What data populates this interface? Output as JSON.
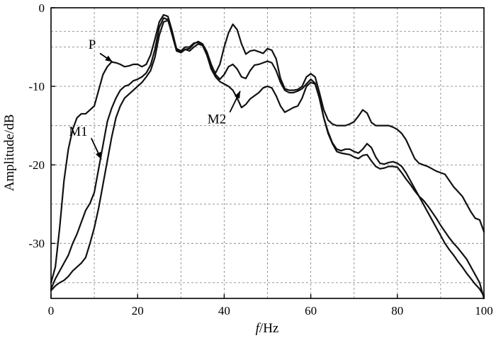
{
  "chart_data": {
    "type": "line",
    "title": "",
    "xlabel_italic": "f",
    "xlabel_rest": "/Hz",
    "ylabel": "Amplitude/dB",
    "xlim": [
      0,
      100
    ],
    "ylim": [
      -37,
      0
    ],
    "xticks": [
      0,
      20,
      40,
      60,
      80,
      100
    ],
    "yticks": [
      0,
      -10,
      -20,
      -30
    ],
    "xtick_labels": [
      "0",
      "20",
      "40",
      "60",
      "80",
      "100"
    ],
    "ytick_labels": [
      "0",
      "-10",
      "-20",
      "-30"
    ],
    "xgrid": [
      0,
      10,
      20,
      30,
      40,
      50,
      60,
      70,
      80,
      90,
      100
    ],
    "ygrid": [
      -3,
      -5,
      -10,
      -15,
      -20,
      -25,
      -30,
      -35
    ],
    "grid": true,
    "series": [
      {
        "name": "P",
        "x": [
          0,
          1,
          2,
          3,
          4,
          5,
          6,
          7,
          8,
          9,
          10,
          11,
          12,
          13,
          14,
          15,
          16,
          17,
          18,
          19,
          20,
          21,
          22,
          23,
          24,
          25,
          26,
          27,
          28,
          29,
          30,
          31,
          32,
          33,
          34,
          35,
          36,
          37,
          38,
          39,
          40,
          41,
          42,
          43,
          44,
          45,
          46,
          47,
          48,
          49,
          50,
          51,
          52,
          53,
          54,
          55,
          56,
          57,
          58,
          59,
          60,
          61,
          62,
          63,
          64,
          65,
          66,
          67,
          68,
          69,
          70,
          71,
          72,
          73,
          74,
          75,
          76,
          77,
          78,
          79,
          80,
          81,
          82,
          83,
          84,
          85,
          86,
          87,
          88,
          89,
          90,
          91,
          92,
          93,
          94,
          95,
          96,
          97,
          98,
          99,
          100
        ],
        "y": [
          -35,
          -33,
          -28,
          -22,
          -18,
          -15.5,
          -14,
          -13.5,
          -13.5,
          -13,
          -12.5,
          -10.5,
          -8.5,
          -7.5,
          -6.9,
          -7,
          -7.2,
          -7.5,
          -7.4,
          -7.2,
          -7.2,
          -7.5,
          -7.2,
          -6,
          -4,
          -1.8,
          -0.9,
          -1.1,
          -3,
          -5.3,
          -5.7,
          -5.3,
          -5.5,
          -5,
          -4.6,
          -4.8,
          -6,
          -7.5,
          -8.3,
          -7.2,
          -5,
          -3.2,
          -2.1,
          -2.8,
          -4.6,
          -5.9,
          -5.5,
          -5.4,
          -5.6,
          -5.8,
          -5.2,
          -5.4,
          -6.5,
          -9,
          -10.3,
          -10.5,
          -10.5,
          -10.4,
          -10,
          -8.8,
          -8.4,
          -8.8,
          -10.8,
          -13,
          -14.3,
          -14.8,
          -15,
          -15,
          -15,
          -14.8,
          -14.5,
          -13.8,
          -13,
          -13.4,
          -14.6,
          -15,
          -15,
          -15,
          -15,
          -15.2,
          -15.5,
          -16,
          -16.8,
          -18,
          -19.2,
          -19.8,
          -20,
          -20.2,
          -20.5,
          -20.8,
          -21,
          -21.2,
          -22,
          -22.8,
          -23.4,
          -24,
          -25,
          -26,
          -26.8,
          -27,
          -28.5
        ]
      },
      {
        "name": "M1",
        "x": [
          0,
          1,
          2,
          3,
          4,
          5,
          6,
          7,
          8,
          9,
          10,
          11,
          12,
          13,
          14,
          15,
          16,
          17,
          18,
          19,
          20,
          21,
          22,
          23,
          24,
          25,
          26,
          27,
          28,
          29,
          30,
          31,
          32,
          33,
          34,
          35,
          36,
          37,
          38,
          39,
          40,
          41,
          42,
          43,
          44,
          45,
          46,
          47,
          48,
          49,
          50,
          51,
          52,
          53,
          54,
          55,
          56,
          57,
          58,
          59,
          60,
          61,
          62,
          63,
          64,
          65,
          66,
          67,
          68,
          69,
          70,
          71,
          72,
          73,
          74,
          75,
          76,
          77,
          78,
          79,
          80,
          81,
          82,
          83,
          84,
          85,
          86,
          87,
          88,
          89,
          90,
          91,
          92,
          93,
          94,
          95,
          96,
          97,
          98,
          99,
          100
        ],
        "y": [
          -35.8,
          -34.5,
          -33.5,
          -32.5,
          -31.5,
          -30,
          -28.8,
          -27.3,
          -25.8,
          -24.9,
          -23.5,
          -20.5,
          -17.5,
          -14.5,
          -12.8,
          -11.5,
          -10.5,
          -10,
          -9.8,
          -9.3,
          -9.1,
          -8.8,
          -8.3,
          -7.3,
          -5.3,
          -2.5,
          -1.3,
          -1.5,
          -3.5,
          -5.5,
          -5.7,
          -5.3,
          -5.2,
          -4.6,
          -4.3,
          -4.6,
          -5.6,
          -7.2,
          -8.5,
          -9.1,
          -8.5,
          -7.5,
          -7.2,
          -7.8,
          -8.8,
          -9,
          -8,
          -7.3,
          -7.2,
          -7,
          -6.8,
          -7,
          -8,
          -9.5,
          -10.5,
          -10.8,
          -10.8,
          -10.6,
          -10.3,
          -9.7,
          -9.1,
          -9.6,
          -11.5,
          -14,
          -15.8,
          -17.2,
          -18,
          -18.2,
          -18,
          -18,
          -18.3,
          -18.5,
          -18,
          -17.3,
          -17.8,
          -19,
          -19.8,
          -19.9,
          -19.7,
          -19.6,
          -19.8,
          -20.2,
          -21,
          -22,
          -23,
          -24,
          -25,
          -26,
          -27,
          -28,
          -29,
          -30,
          -30.8,
          -31.5,
          -32.3,
          -33,
          -33.8,
          -34.5,
          -35.2,
          -35.8,
          -36.7
        ]
      },
      {
        "name": "M2",
        "x": [
          0,
          1,
          2,
          3,
          4,
          5,
          6,
          7,
          8,
          9,
          10,
          11,
          12,
          13,
          14,
          15,
          16,
          17,
          18,
          19,
          20,
          21,
          22,
          23,
          24,
          25,
          26,
          27,
          28,
          29,
          30,
          31,
          32,
          33,
          34,
          35,
          36,
          37,
          38,
          39,
          40,
          41,
          42,
          43,
          44,
          45,
          46,
          47,
          48,
          49,
          50,
          51,
          52,
          53,
          54,
          55,
          56,
          57,
          58,
          59,
          60,
          61,
          62,
          63,
          64,
          65,
          66,
          67,
          68,
          69,
          70,
          71,
          72,
          73,
          74,
          75,
          76,
          77,
          78,
          79,
          80,
          81,
          82,
          83,
          84,
          85,
          86,
          87,
          88,
          89,
          90,
          91,
          92,
          93,
          94,
          95,
          96,
          97,
          98,
          99,
          100
        ],
        "y": [
          -36,
          -35.4,
          -35,
          -34.7,
          -34.2,
          -33.5,
          -33,
          -32.5,
          -31.8,
          -30,
          -28,
          -25.5,
          -22.5,
          -19.5,
          -16.5,
          -14,
          -12.5,
          -11.5,
          -11,
          -10.5,
          -10,
          -9.5,
          -8.8,
          -8,
          -6.3,
          -3.5,
          -1.8,
          -1.6,
          -3.2,
          -5.2,
          -5.5,
          -5,
          -5,
          -4.5,
          -4.4,
          -4.7,
          -6,
          -7.8,
          -8.8,
          -9.4,
          -9.7,
          -10,
          -10.5,
          -11.5,
          -12.7,
          -12.3,
          -11.6,
          -11.2,
          -10.8,
          -10.2,
          -10,
          -10.2,
          -11.2,
          -12.5,
          -13.3,
          -13,
          -12.7,
          -12.5,
          -11.5,
          -10,
          -9.5,
          -9.7,
          -11.5,
          -14,
          -16,
          -17.3,
          -18.3,
          -18.5,
          -18.6,
          -18.7,
          -19,
          -19.2,
          -18.8,
          -18.7,
          -19.5,
          -20.2,
          -20.5,
          -20.4,
          -20.2,
          -20.2,
          -20.3,
          -21,
          -21.8,
          -22.5,
          -23.3,
          -24,
          -24.5,
          -25.2,
          -26,
          -26.8,
          -27.7,
          -28.5,
          -29.3,
          -30,
          -30.6,
          -31.3,
          -32,
          -33,
          -34,
          -35,
          -37
        ]
      }
    ],
    "annotations": [
      {
        "text": "P",
        "label_x": 9.5,
        "label_y": -5.2,
        "arrow_from": [
          11.3,
          -5.8
        ],
        "arrow_to": [
          14.2,
          -6.9
        ]
      },
      {
        "text": "M1",
        "label_x": 6.3,
        "label_y": -16.3,
        "arrow_from": [
          9.3,
          -16.6
        ],
        "arrow_to": [
          11.6,
          -19.3
        ]
      },
      {
        "text": "M2",
        "label_x": 38.3,
        "label_y": -14.7,
        "arrow_from": [
          41.3,
          -13.3
        ],
        "arrow_to": [
          43.7,
          -10.6
        ]
      }
    ]
  }
}
